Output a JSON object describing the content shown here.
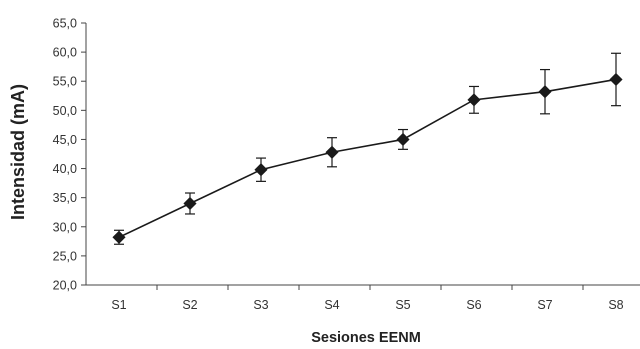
{
  "chart_data": {
    "type": "line",
    "xlabel": "Sesiones EENM",
    "ylabel": "Intensidad (mA)",
    "categories": [
      "S1",
      "S2",
      "S3",
      "S4",
      "S5",
      "S6",
      "S7",
      "S8"
    ],
    "series": [
      {
        "values": [
          28.2,
          34.0,
          39.8,
          42.8,
          45.0,
          51.8,
          53.2,
          55.3
        ],
        "error": [
          1.2,
          1.8,
          2.0,
          2.5,
          1.7,
          2.3,
          3.8,
          4.5
        ]
      }
    ],
    "ylim": [
      20,
      65
    ],
    "yticks": [
      "20,0",
      "25,0",
      "30,0",
      "35,0",
      "40,0",
      "45,0",
      "50,0",
      "55,0",
      "60,0",
      "65,0"
    ],
    "grid": false,
    "marker": "diamond",
    "line_color": "#1a1a1a"
  }
}
